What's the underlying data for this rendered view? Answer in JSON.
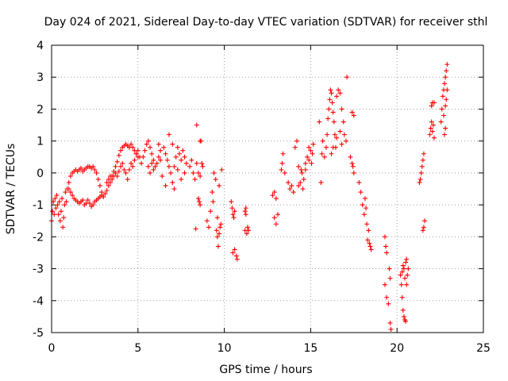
{
  "chart_data": {
    "type": "scatter",
    "title": "Day 024 of 2021, Sidereal Day-to-day VTEC variation (SDTVAR) for receiver sthl",
    "xlabel": "GPS time / hours",
    "ylabel": "SDTVAR / TECUs",
    "xlim": [
      0,
      25
    ],
    "ylim": [
      -5,
      4
    ],
    "x_ticks": [
      0,
      5,
      10,
      15,
      20,
      25
    ],
    "y_ticks": [
      -5,
      -4,
      -3,
      -2,
      -1,
      0,
      1,
      2,
      3,
      4
    ],
    "grid": true,
    "marker": "plus",
    "color": "#ff0000",
    "series": [
      {
        "name": "SDTVAR",
        "points": [
          [
            0.0,
            -1.5
          ],
          [
            0.05,
            -1.2
          ],
          [
            0.1,
            -0.9
          ],
          [
            0.15,
            -1.3
          ],
          [
            0.2,
            -0.8
          ],
          [
            0.25,
            -1.1
          ],
          [
            0.3,
            -0.7
          ],
          [
            0.35,
            -1.0
          ],
          [
            0.4,
            -1.3
          ],
          [
            0.45,
            -0.9
          ],
          [
            0.5,
            -1.5
          ],
          [
            0.55,
            -1.2
          ],
          [
            0.6,
            -0.8
          ],
          [
            0.65,
            -1.7
          ],
          [
            0.7,
            -1.4
          ],
          [
            0.75,
            -1.0
          ],
          [
            0.8,
            -0.6
          ],
          [
            0.85,
            -0.9
          ],
          [
            0.9,
            -0.5
          ],
          [
            1.0,
            -0.3
          ],
          [
            1.1,
            -0.1
          ],
          [
            1.2,
            0.0
          ],
          [
            1.3,
            0.05
          ],
          [
            1.4,
            0.1
          ],
          [
            1.5,
            0.05
          ],
          [
            1.6,
            0.1
          ],
          [
            1.7,
            0.15
          ],
          [
            1.8,
            0.05
          ],
          [
            1.9,
            0.1
          ],
          [
            2.0,
            0.15
          ],
          [
            2.1,
            0.2
          ],
          [
            2.2,
            0.2
          ],
          [
            2.3,
            0.15
          ],
          [
            2.4,
            0.2
          ],
          [
            2.5,
            0.1
          ],
          [
            2.6,
            0.0
          ],
          [
            2.7,
            -0.2
          ],
          [
            2.8,
            -0.4
          ],
          [
            2.9,
            -0.6
          ],
          [
            3.0,
            -0.75
          ],
          [
            1.0,
            -0.5
          ],
          [
            1.1,
            -0.6
          ],
          [
            1.2,
            -0.7
          ],
          [
            1.3,
            -0.8
          ],
          [
            1.4,
            -0.85
          ],
          [
            1.5,
            -0.9
          ],
          [
            1.6,
            -0.95
          ],
          [
            1.7,
            -0.9
          ],
          [
            1.8,
            -0.85
          ],
          [
            1.9,
            -1.0
          ],
          [
            2.0,
            -0.95
          ],
          [
            2.1,
            -0.85
          ],
          [
            2.2,
            -0.95
          ],
          [
            2.3,
            -1.05
          ],
          [
            2.4,
            -1.0
          ],
          [
            2.5,
            -0.9
          ],
          [
            2.6,
            -0.85
          ],
          [
            2.7,
            -0.8
          ],
          [
            2.8,
            -0.75
          ],
          [
            2.9,
            -0.7
          ],
          [
            3.1,
            -0.65
          ],
          [
            3.2,
            -0.55
          ],
          [
            3.3,
            -0.4
          ],
          [
            3.4,
            -0.3
          ],
          [
            3.5,
            -0.1
          ],
          [
            3.6,
            0.05
          ],
          [
            3.7,
            0.2
          ],
          [
            3.8,
            0.35
          ],
          [
            3.9,
            0.55
          ],
          [
            4.0,
            0.7
          ],
          [
            4.1,
            0.8
          ],
          [
            4.2,
            0.85
          ],
          [
            4.3,
            0.9
          ],
          [
            4.4,
            0.85
          ],
          [
            4.5,
            0.8
          ],
          [
            4.6,
            0.9
          ],
          [
            4.7,
            0.8
          ],
          [
            4.8,
            0.7
          ],
          [
            4.9,
            0.6
          ],
          [
            5.0,
            0.5
          ],
          [
            3.2,
            -0.3
          ],
          [
            3.3,
            -0.2
          ],
          [
            3.4,
            -0.1
          ],
          [
            3.5,
            -0.2
          ],
          [
            3.6,
            -0.1
          ],
          [
            3.7,
            0.0
          ],
          [
            3.8,
            -0.1
          ],
          [
            3.9,
            0.05
          ],
          [
            4.0,
            0.2
          ],
          [
            4.1,
            0.3
          ],
          [
            4.2,
            0.1
          ],
          [
            4.3,
            0.0
          ],
          [
            4.4,
            -0.2
          ],
          [
            4.5,
            0.1
          ],
          [
            4.6,
            0.3
          ],
          [
            4.7,
            0.2
          ],
          [
            4.8,
            0.4
          ],
          [
            4.9,
            0.6
          ],
          [
            5.0,
            0.7
          ],
          [
            5.1,
            0.5
          ],
          [
            5.2,
            0.3
          ],
          [
            5.3,
            0.5
          ],
          [
            5.4,
            0.7
          ],
          [
            5.5,
            0.9
          ],
          [
            5.6,
            1.0
          ],
          [
            5.7,
            0.8
          ],
          [
            5.8,
            0.6
          ],
          [
            5.9,
            0.4
          ],
          [
            6.0,
            0.2
          ],
          [
            6.1,
            0.3
          ],
          [
            6.2,
            0.5
          ],
          [
            6.3,
            0.7
          ],
          [
            6.5,
            0.8
          ],
          [
            6.6,
            0.6
          ],
          [
            6.7,
            0.4
          ],
          [
            6.8,
            0.2
          ],
          [
            6.9,
            0.0
          ],
          [
            7.0,
            -0.3
          ],
          [
            7.1,
            0.2
          ],
          [
            7.2,
            0.5
          ],
          [
            7.3,
            0.8
          ],
          [
            7.4,
            0.6
          ],
          [
            7.5,
            0.4
          ],
          [
            7.6,
            0.7
          ],
          [
            7.7,
            0.5
          ],
          [
            7.8,
            0.3
          ],
          [
            5.6,
            0.2
          ],
          [
            5.7,
            0.0
          ],
          [
            5.8,
            0.3
          ],
          [
            5.9,
            0.1
          ],
          [
            6.2,
            0.9
          ],
          [
            6.3,
            0.4
          ],
          [
            6.4,
            -0.1
          ],
          [
            6.6,
            -0.4
          ],
          [
            6.8,
            1.2
          ],
          [
            7.0,
            0.9
          ],
          [
            7.1,
            -0.5
          ],
          [
            7.3,
            0.1
          ],
          [
            7.5,
            -0.2
          ],
          [
            7.7,
            0.0
          ],
          [
            8.0,
            0.2
          ],
          [
            8.1,
            0.4
          ],
          [
            8.2,
            0.0
          ],
          [
            8.3,
            -0.2
          ],
          [
            8.35,
            -1.75
          ],
          [
            8.4,
            0.3
          ],
          [
            8.5,
            0.0
          ],
          [
            8.6,
            -0.1
          ],
          [
            8.6,
            1.0
          ],
          [
            8.65,
            1.0
          ],
          [
            8.5,
            -0.8
          ],
          [
            8.55,
            -0.9
          ],
          [
            8.6,
            -1.0
          ],
          [
            8.4,
            1.5
          ],
          [
            8.7,
            0.3
          ],
          [
            8.75,
            0.2
          ],
          [
            9.0,
            -1.5
          ],
          [
            9.1,
            -1.7
          ],
          [
            9.2,
            -1.2
          ],
          [
            9.3,
            -0.6
          ],
          [
            9.35,
            -0.9
          ],
          [
            9.4,
            0.0
          ],
          [
            9.5,
            -0.2
          ],
          [
            9.55,
            -1.8
          ],
          [
            9.6,
            -2.0
          ],
          [
            9.65,
            -2.3
          ],
          [
            9.7,
            -1.9
          ],
          [
            9.75,
            -1.7
          ],
          [
            9.8,
            -1.6
          ],
          [
            9.85,
            0.1
          ],
          [
            9.7,
            -0.4
          ],
          [
            9.6,
            -1.4
          ],
          [
            10.4,
            -0.9
          ],
          [
            10.45,
            -1.1
          ],
          [
            10.5,
            -1.3
          ],
          [
            10.55,
            -1.4
          ],
          [
            10.6,
            -1.2
          ],
          [
            10.5,
            -2.5
          ],
          [
            10.6,
            -2.4
          ],
          [
            10.7,
            -2.6
          ],
          [
            10.75,
            -2.7
          ],
          [
            11.2,
            -1.2
          ],
          [
            11.25,
            -1.3
          ],
          [
            11.2,
            -1.8
          ],
          [
            11.3,
            -1.9
          ],
          [
            11.35,
            -1.7
          ],
          [
            11.4,
            -1.8
          ],
          [
            11.25,
            -1.1
          ],
          [
            12.8,
            -0.7
          ],
          [
            12.9,
            -0.6
          ],
          [
            13.0,
            -0.8
          ],
          [
            12.9,
            -1.4
          ],
          [
            13.0,
            -1.6
          ],
          [
            13.1,
            -1.3
          ],
          [
            13.3,
            0.1
          ],
          [
            13.35,
            0.3
          ],
          [
            13.4,
            0.6
          ],
          [
            13.5,
            0.0
          ],
          [
            13.7,
            -0.3
          ],
          [
            13.8,
            -0.5
          ],
          [
            13.9,
            -0.4
          ],
          [
            14.0,
            -0.6
          ],
          [
            14.1,
            0.8
          ],
          [
            14.2,
            1.0
          ],
          [
            14.3,
            0.2
          ],
          [
            14.4,
            -0.3
          ],
          [
            14.5,
            0.0
          ],
          [
            14.6,
            -0.2
          ],
          [
            14.7,
            0.3
          ],
          [
            14.8,
            0.5
          ],
          [
            14.9,
            0.4
          ],
          [
            15.0,
            0.7
          ],
          [
            15.1,
            0.6
          ],
          [
            15.15,
            0.9
          ],
          [
            14.3,
            -0.4
          ],
          [
            14.45,
            0.1
          ],
          [
            14.55,
            -0.5
          ],
          [
            14.7,
            0.1
          ],
          [
            14.9,
            0.8
          ],
          [
            15.05,
            0.3
          ],
          [
            15.5,
            1.6
          ],
          [
            15.6,
            -0.3
          ],
          [
            15.65,
            0.6
          ],
          [
            15.7,
            1.0
          ],
          [
            15.8,
            0.5
          ],
          [
            15.9,
            0.8
          ],
          [
            15.95,
            1.2
          ],
          [
            16.0,
            1.7
          ],
          [
            16.05,
            2.0
          ],
          [
            16.1,
            2.3
          ],
          [
            16.15,
            2.6
          ],
          [
            16.2,
            2.5
          ],
          [
            16.25,
            2.2
          ],
          [
            16.3,
            1.9
          ],
          [
            16.35,
            1.6
          ],
          [
            16.4,
            1.2
          ],
          [
            16.45,
            0.8
          ],
          [
            16.5,
            2.4
          ],
          [
            16.6,
            2.6
          ],
          [
            16.7,
            2.5
          ],
          [
            16.8,
            2.0
          ],
          [
            16.9,
            1.6
          ],
          [
            16.95,
            1.2
          ],
          [
            17.05,
            1.0
          ],
          [
            16.2,
            0.6
          ],
          [
            16.3,
            0.8
          ],
          [
            16.5,
            1.1
          ],
          [
            16.7,
            1.3
          ],
          [
            16.8,
            0.9
          ],
          [
            17.1,
            3.0
          ],
          [
            17.4,
            1.9
          ],
          [
            17.5,
            1.8
          ],
          [
            17.3,
            0.5
          ],
          [
            17.4,
            0.3
          ],
          [
            17.45,
            0.2
          ],
          [
            17.5,
            0.0
          ],
          [
            17.8,
            -0.3
          ],
          [
            17.9,
            -0.6
          ],
          [
            18.0,
            -1.0
          ],
          [
            18.1,
            -1.3
          ],
          [
            18.15,
            -0.8
          ],
          [
            18.2,
            -1.1
          ],
          [
            18.25,
            -1.6
          ],
          [
            18.3,
            -2.1
          ],
          [
            18.35,
            -1.8
          ],
          [
            18.4,
            -2.2
          ],
          [
            18.45,
            -2.3
          ],
          [
            18.5,
            -2.4
          ],
          [
            19.3,
            -2.0
          ],
          [
            19.35,
            -2.3
          ],
          [
            19.4,
            -2.5
          ],
          [
            19.3,
            -3.5
          ],
          [
            19.4,
            -3.9
          ],
          [
            19.5,
            -4.1
          ],
          [
            19.6,
            -4.7
          ],
          [
            19.65,
            -4.9
          ],
          [
            19.55,
            -3.0
          ],
          [
            19.6,
            -3.3
          ],
          [
            20.2,
            -3.2
          ],
          [
            20.25,
            -3.5
          ],
          [
            20.3,
            -3.9
          ],
          [
            20.35,
            -4.3
          ],
          [
            20.4,
            -4.5
          ],
          [
            20.45,
            -4.6
          ],
          [
            20.5,
            -4.65
          ],
          [
            20.3,
            -3.1
          ],
          [
            20.35,
            -2.9
          ],
          [
            20.4,
            -3.0
          ],
          [
            20.45,
            -3.3
          ],
          [
            20.5,
            -2.8
          ],
          [
            20.55,
            -3.5
          ],
          [
            20.6,
            -3.2
          ],
          [
            20.55,
            -2.7
          ],
          [
            20.65,
            -3.0
          ],
          [
            21.3,
            -0.3
          ],
          [
            21.35,
            -0.2
          ],
          [
            21.4,
            0.0
          ],
          [
            21.45,
            0.2
          ],
          [
            21.5,
            0.4
          ],
          [
            21.55,
            0.6
          ],
          [
            21.5,
            -1.8
          ],
          [
            21.55,
            -1.7
          ],
          [
            21.6,
            -1.5
          ],
          [
            21.9,
            1.2
          ],
          [
            21.95,
            1.4
          ],
          [
            22.0,
            1.6
          ],
          [
            22.05,
            1.3
          ],
          [
            22.1,
            1.5
          ],
          [
            22.15,
            1.1
          ],
          [
            22.0,
            2.1
          ],
          [
            22.05,
            2.2
          ],
          [
            22.15,
            2.2
          ],
          [
            22.55,
            1.6
          ],
          [
            22.6,
            2.0
          ],
          [
            22.65,
            2.4
          ],
          [
            22.7,
            2.6
          ],
          [
            22.75,
            2.8
          ],
          [
            22.8,
            3.0
          ],
          [
            22.85,
            3.2
          ],
          [
            22.9,
            3.4
          ],
          [
            22.75,
            1.2
          ],
          [
            22.8,
            1.4
          ],
          [
            22.85,
            2.3
          ],
          [
            22.9,
            2.6
          ],
          [
            22.7,
            1.8
          ],
          [
            22.8,
            2.1
          ]
        ]
      }
    ]
  }
}
